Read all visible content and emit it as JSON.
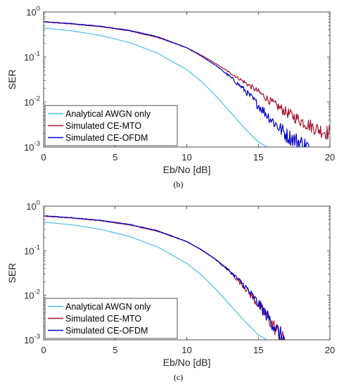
{
  "chart_data": [
    {
      "type": "line",
      "panel_label": "(b)",
      "xlabel": "Eb/No [dB]",
      "ylabel": "SER",
      "xlim": [
        0,
        20
      ],
      "ylim": [
        0.001,
        1
      ],
      "yscale": "log",
      "x_ticks": [
        "0",
        "5",
        "10",
        "15",
        "20"
      ],
      "y_ticks": [
        {
          "base": "10",
          "exp": "0",
          "value": 1
        },
        {
          "base": "10",
          "exp": "-1",
          "value": 0.1
        },
        {
          "base": "10",
          "exp": "-2",
          "value": 0.01
        },
        {
          "base": "10",
          "exp": "-3",
          "value": 0.001
        }
      ],
      "grid": false,
      "legend_position": "bottom-left",
      "series": [
        {
          "name": "Analytical AWGN only",
          "color": "#4dbeee",
          "x": [
            0,
            2,
            4,
            6,
            8,
            10,
            11,
            12,
            13,
            14,
            15,
            15.6
          ],
          "y": [
            0.44,
            0.38,
            0.3,
            0.21,
            0.12,
            0.052,
            0.029,
            0.014,
            0.0062,
            0.0027,
            0.0013,
            0.001
          ]
        },
        {
          "name": "Simulated CE-MTO",
          "color": "#a2142f",
          "x": [
            0,
            2,
            4,
            6,
            8,
            10,
            11,
            12,
            13,
            14,
            15,
            16,
            17,
            18,
            19,
            20
          ],
          "y": [
            0.6,
            0.54,
            0.47,
            0.38,
            0.27,
            0.16,
            0.11,
            0.072,
            0.045,
            0.028,
            0.017,
            0.0095,
            0.0058,
            0.0038,
            0.0026,
            0.002
          ]
        },
        {
          "name": "Simulated CE-OFDM",
          "color": "#0000c8",
          "x": [
            0,
            2,
            4,
            6,
            8,
            10,
            11,
            12,
            13,
            14,
            15,
            16,
            17,
            18.5
          ],
          "y": [
            0.61,
            0.55,
            0.48,
            0.39,
            0.28,
            0.16,
            0.105,
            0.066,
            0.037,
            0.019,
            0.0085,
            0.0038,
            0.0018,
            0.001
          ]
        }
      ]
    },
    {
      "type": "line",
      "panel_label": "(c)",
      "xlabel": "Eb/No [dB]",
      "ylabel": "SER",
      "xlim": [
        0,
        20
      ],
      "ylim": [
        0.001,
        1
      ],
      "yscale": "log",
      "x_ticks": [
        "0",
        "5",
        "10",
        "15",
        "20"
      ],
      "y_ticks": [
        {
          "base": "10",
          "exp": "0",
          "value": 1
        },
        {
          "base": "10",
          "exp": "-1",
          "value": 0.1
        },
        {
          "base": "10",
          "exp": "-2",
          "value": 0.01
        },
        {
          "base": "10",
          "exp": "-3",
          "value": 0.001
        }
      ],
      "grid": false,
      "legend_position": "bottom-left",
      "series": [
        {
          "name": "Analytical AWGN only",
          "color": "#4dbeee",
          "x": [
            0,
            2,
            4,
            6,
            8,
            10,
            11,
            12,
            13,
            14,
            15,
            15.6
          ],
          "y": [
            0.44,
            0.38,
            0.3,
            0.21,
            0.12,
            0.052,
            0.029,
            0.014,
            0.0062,
            0.0027,
            0.0013,
            0.001
          ]
        },
        {
          "name": "Simulated CE-MTO",
          "color": "#a2142f",
          "x": [
            0,
            2,
            4,
            6,
            8,
            10,
            11,
            12,
            13,
            14,
            15,
            16,
            16.7
          ],
          "y": [
            0.6,
            0.54,
            0.47,
            0.38,
            0.27,
            0.16,
            0.105,
            0.064,
            0.034,
            0.016,
            0.0062,
            0.0022,
            0.001
          ]
        },
        {
          "name": "Simulated CE-OFDM",
          "color": "#0000c8",
          "x": [
            0,
            2,
            4,
            6,
            8,
            10,
            11,
            12,
            13,
            14,
            15,
            16,
            16.8
          ],
          "y": [
            0.61,
            0.55,
            0.48,
            0.39,
            0.28,
            0.16,
            0.107,
            0.065,
            0.035,
            0.017,
            0.0065,
            0.0023,
            0.001
          ]
        }
      ]
    }
  ]
}
